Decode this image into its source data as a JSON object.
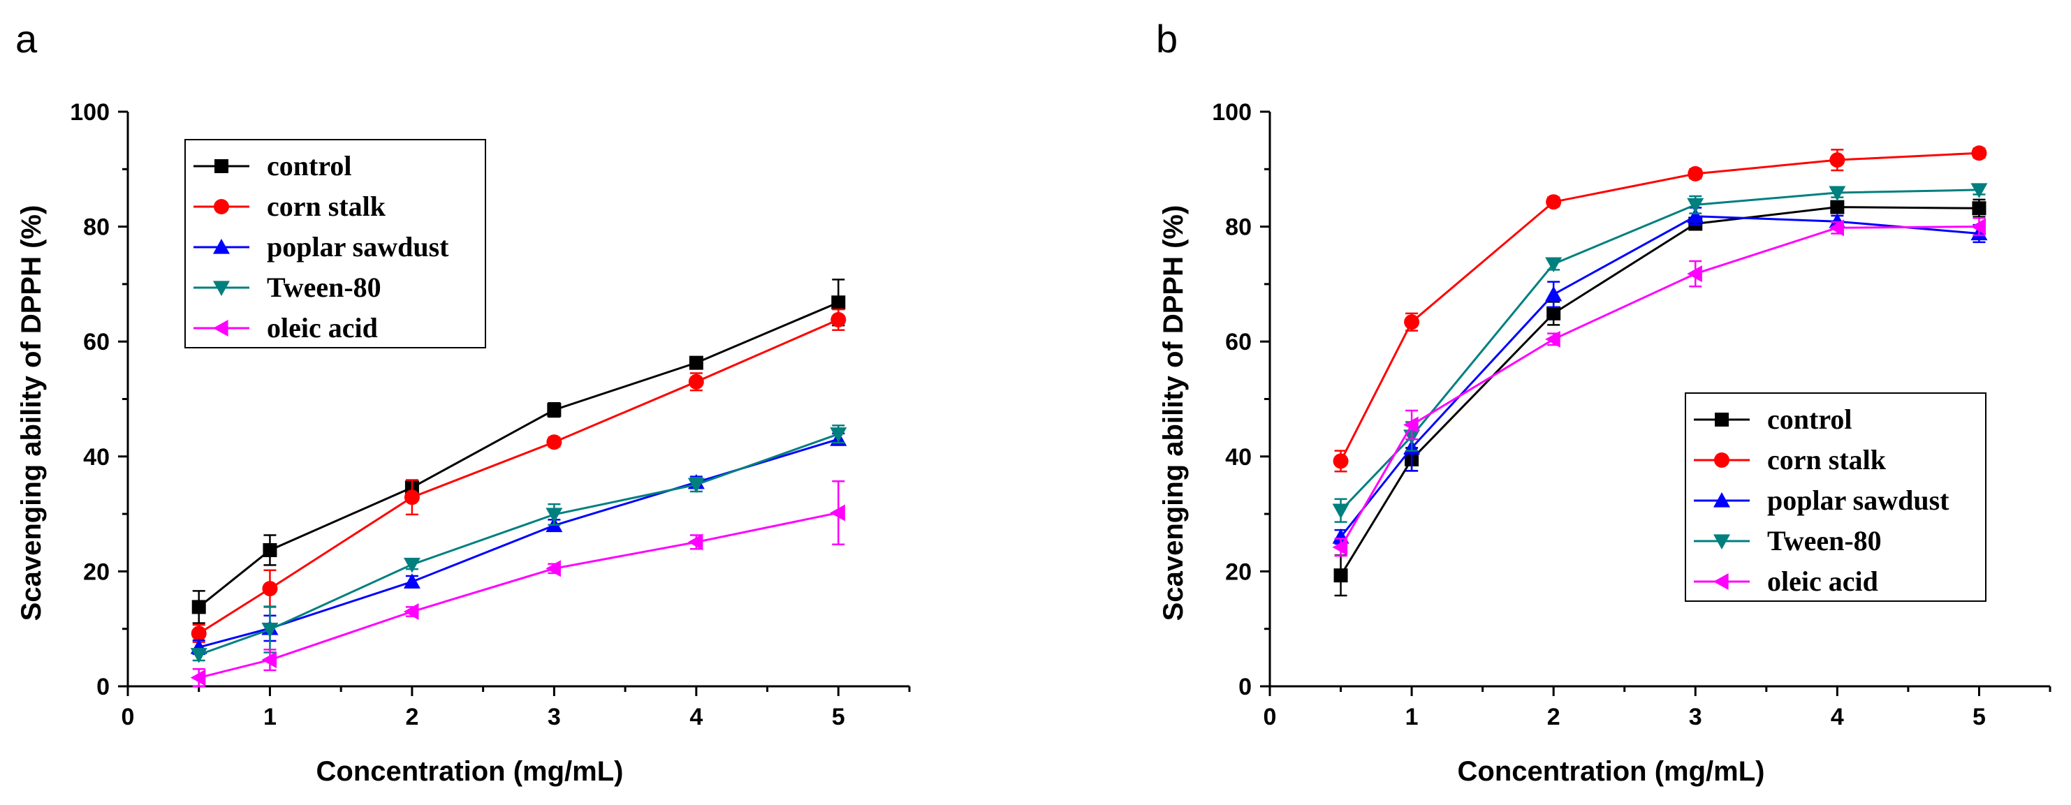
{
  "chart_data": [
    {
      "panel": "a",
      "type": "line",
      "xlabel": "Concentration (mg/mL)",
      "ylabel": "Scavenging ability of DPPH (%)",
      "xlim": [
        0,
        5.5
      ],
      "ylim": [
        0,
        100
      ],
      "xticks": [
        0,
        1,
        2,
        3,
        4,
        5
      ],
      "yticks": [
        0,
        20,
        40,
        60,
        80,
        100
      ],
      "x": [
        0.5,
        1,
        2,
        3,
        4,
        5
      ],
      "legend_position": "top-left",
      "series": [
        {
          "name": "control",
          "color": "#000000",
          "marker": "square",
          "values": [
            13.8,
            23.7,
            34.6,
            48.1,
            56.3,
            66.8
          ],
          "errors": [
            2.8,
            2.6,
            1.0,
            1.2,
            0.8,
            4.0
          ]
        },
        {
          "name": "corn stalk",
          "color": "#ff0000",
          "marker": "circle",
          "values": [
            9.2,
            17.0,
            32.9,
            42.5,
            53.0,
            63.8
          ],
          "errors": [
            1.5,
            3.2,
            3.0,
            0.8,
            1.5,
            1.8
          ]
        },
        {
          "name": "poplar sawdust",
          "color": "#0000ff",
          "marker": "triangle-up",
          "values": [
            6.8,
            10.1,
            18.2,
            28.0,
            35.5,
            43.0
          ],
          "errors": [
            1.2,
            2.2,
            1.0,
            1.0,
            1.0,
            1.0
          ]
        },
        {
          "name": "Tween-80",
          "color": "#007f7f",
          "marker": "triangle-down",
          "values": [
            5.5,
            9.9,
            21.2,
            29.9,
            35.1,
            43.9
          ],
          "errors": [
            1.0,
            4.0,
            0.8,
            1.8,
            1.2,
            1.5
          ]
        },
        {
          "name": "oleic acid",
          "color": "#ff00ff",
          "marker": "triangle-left",
          "values": [
            1.5,
            4.6,
            13.0,
            20.5,
            25.1,
            30.2
          ],
          "errors": [
            1.5,
            1.8,
            0.8,
            0.8,
            1.2,
            5.5
          ]
        }
      ]
    },
    {
      "panel": "b",
      "type": "line",
      "xlabel": "Concentration (mg/mL)",
      "ylabel": "Scavenging ability of DPPH (%)",
      "xlim": [
        0,
        5.5
      ],
      "ylim": [
        0,
        100
      ],
      "xticks": [
        0,
        1,
        2,
        3,
        4,
        5
      ],
      "yticks": [
        0,
        20,
        40,
        60,
        80,
        100
      ],
      "x": [
        0.5,
        1,
        2,
        3,
        4,
        5
      ],
      "legend_position": "bottom-right",
      "series": [
        {
          "name": "control",
          "color": "#000000",
          "marker": "square",
          "values": [
            19.3,
            39.5,
            64.9,
            80.5,
            83.4,
            83.2
          ],
          "errors": [
            3.5,
            2.0,
            2.0,
            1.0,
            1.0,
            1.5
          ]
        },
        {
          "name": "corn stalk",
          "color": "#ff0000",
          "marker": "circle",
          "values": [
            39.2,
            63.4,
            84.3,
            89.2,
            91.6,
            92.8
          ],
          "errors": [
            1.8,
            1.5,
            0.8,
            0.8,
            1.8,
            0.8
          ]
        },
        {
          "name": "poplar sawdust",
          "color": "#0000ff",
          "marker": "triangle-up",
          "values": [
            26.0,
            41.5,
            68.2,
            81.8,
            80.9,
            78.8
          ],
          "errors": [
            1.2,
            4.0,
            2.2,
            1.5,
            1.0,
            1.5
          ]
        },
        {
          "name": "Tween-80",
          "color": "#007f7f",
          "marker": "triangle-down",
          "values": [
            30.6,
            43.5,
            73.5,
            83.8,
            85.9,
            86.4
          ],
          "errors": [
            2.0,
            2.5,
            1.0,
            1.5,
            0.8,
            0.8
          ]
        },
        {
          "name": "oleic acid",
          "color": "#ff00ff",
          "marker": "triangle-left",
          "values": [
            24.2,
            45.5,
            60.4,
            71.8,
            79.8,
            80.0
          ],
          "errors": [
            1.5,
            2.5,
            1.0,
            2.2,
            1.0,
            1.5
          ]
        }
      ]
    }
  ]
}
